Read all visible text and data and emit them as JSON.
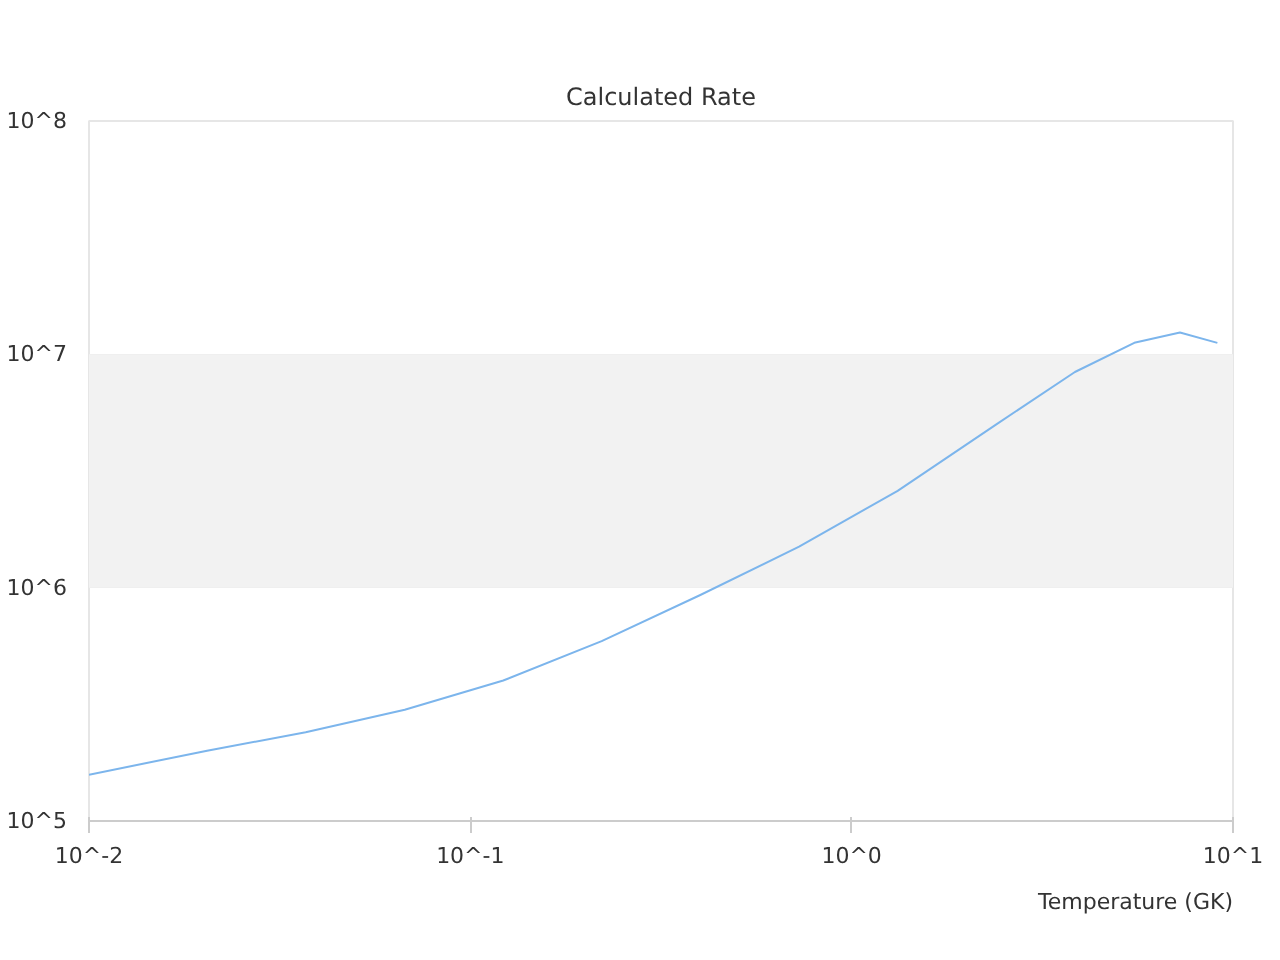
{
  "chart_data": {
    "type": "line",
    "title": "Calculated Rate",
    "xlabel": "Temperature (GK)",
    "log": "xy",
    "x": [
      0.01,
      0.0204,
      0.037,
      0.0673,
      0.122,
      0.221,
      0.401,
      0.728,
      1.32,
      2.39,
      3.85,
      5.51,
      7.26,
      9.1
    ],
    "series": [
      {
        "color": "#7cb5ec",
        "values": [
          158000,
          200000,
          240000,
          300000,
          400000,
          590000,
          930000,
          1500000,
          2600000,
          5000000,
          8400000,
          11200000,
          12400000,
          11200000
        ]
      }
    ],
    "xlim": [
      0.01,
      10
    ],
    "ylim": [
      100000,
      100000000
    ],
    "xticks": [
      {
        "value": 0.01,
        "label": "10^-2"
      },
      {
        "value": 0.1,
        "label": "10^-1"
      },
      {
        "value": 1,
        "label": "10^0"
      },
      {
        "value": 10,
        "label": "10^1"
      }
    ],
    "yticks": [
      {
        "value": 100000,
        "label": "10^5"
      },
      {
        "value": 1000000,
        "label": "10^6"
      },
      {
        "value": 10000000,
        "label": "10^7"
      },
      {
        "value": 100000000,
        "label": "10^8"
      }
    ],
    "bands": [
      {
        "axis": "y",
        "from": 1000000,
        "to": 10000000,
        "color": "#f2f2f2"
      }
    ],
    "grid": "y",
    "marker": "none",
    "line_style": "solid"
  }
}
